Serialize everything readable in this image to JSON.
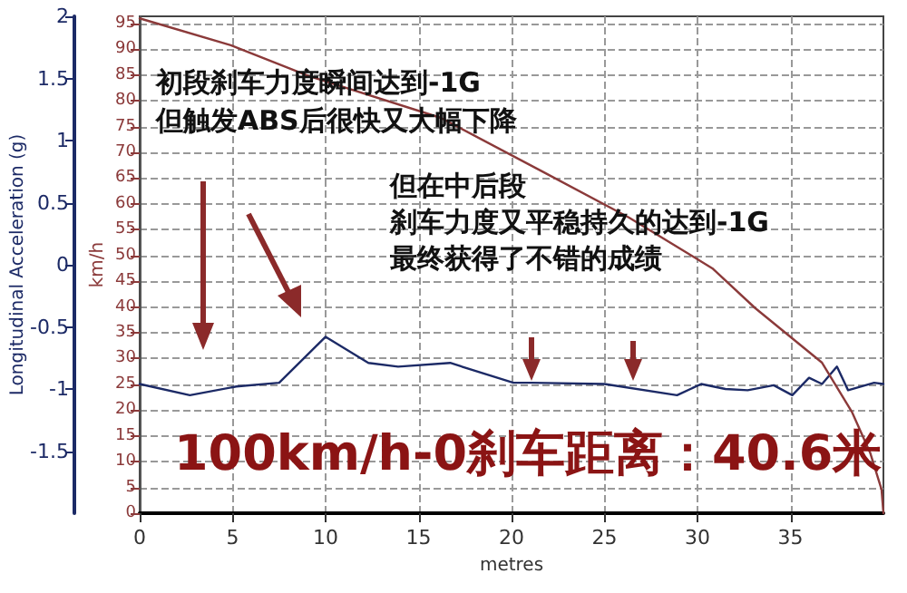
{
  "chart_data": {
    "type": "line",
    "xlabel": "metres",
    "ylabel": "Longitudinal Acceleration (g)",
    "y2label": "km/h",
    "xlim": [
      0,
      40
    ],
    "xticks": [
      0,
      5,
      10,
      15,
      20,
      25,
      30,
      35
    ],
    "ylim": [
      -2,
      2
    ],
    "yticks": [
      -1.5,
      -1,
      -0.5,
      0,
      0.5,
      1,
      1.5,
      2
    ],
    "y2lim": [
      0,
      96.4
    ],
    "y2ticks": [
      0,
      5,
      10,
      15,
      20,
      25,
      30,
      35,
      40,
      45,
      50,
      55,
      60,
      65,
      70,
      75,
      80,
      85,
      90,
      95
    ],
    "grid": true,
    "marker": "none",
    "line_style": "solid",
    "series": [
      {
        "color": "#1c2a66",
        "x": [
          0,
          2.7,
          5.2,
          7.5,
          10,
          12.3,
          13.9,
          16.7,
          20.1,
          21.1,
          25,
          28.9,
          30.2,
          31.5,
          32.7,
          34.1,
          35.1,
          36,
          36.7,
          37.5,
          38.1,
          39.5,
          40
        ],
        "values": [
          -0.96,
          -1.05,
          -0.98,
          -0.95,
          -0.58,
          -0.79,
          -0.82,
          -0.79,
          -0.95,
          -0.95,
          -0.96,
          -1.05,
          -0.96,
          -1,
          -1.01,
          -0.97,
          -1.05,
          -0.91,
          -0.96,
          -0.82,
          -1.01,
          -0.95,
          -0.96
        ]
      },
      {
        "color": "#8b3a3a",
        "axis": "y2",
        "x": [
          0,
          4.9,
          9.1,
          16.2,
          21.7,
          26.3,
          30.8,
          33.1,
          36.7,
          38.3,
          39.3,
          39.9,
          40
        ],
        "values": [
          96,
          90.8,
          84.8,
          76.7,
          66.2,
          57.4,
          47.5,
          39.8,
          29.2,
          19.7,
          11.6,
          4.6,
          0
        ]
      }
    ],
    "annotations": [
      "初段刹车力度瞬间达到-1G",
      "但触发ABS后很快又大幅下降",
      "但在中后段",
      "刹车力度又平稳持久的达到-1G",
      "最终获得了不错的成绩",
      "100km/h-0刹车距离：40.6米"
    ]
  }
}
